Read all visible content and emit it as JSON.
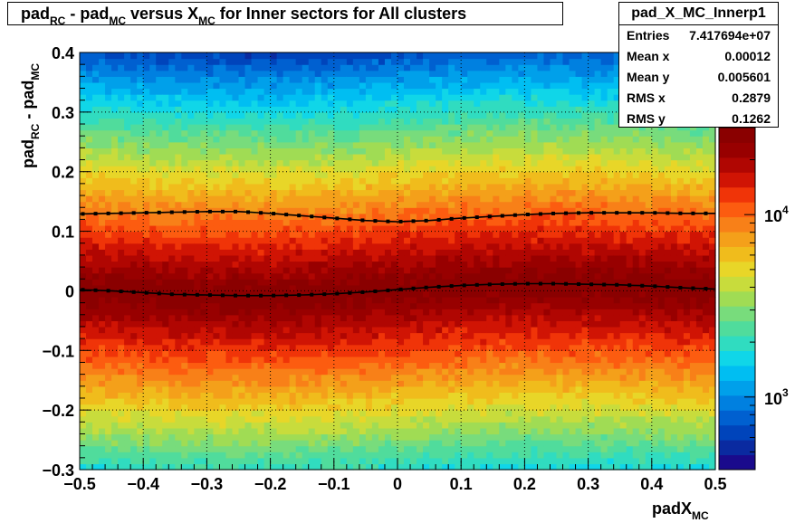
{
  "chart_data": {
    "type": "heatmap",
    "title": {
      "base": "pad",
      "sub1": "RC",
      "mid1": " - pad",
      "sub2": "MC",
      "mid2": " versus X",
      "sub3": "MC",
      "tail": " for Inner sectors for All clusters"
    },
    "xlabel": {
      "base": "padX",
      "sub": "MC"
    },
    "ylabel": {
      "base1": "pad",
      "sub1": "RC",
      "mid": " - pad",
      "sub2": "MC"
    },
    "xlim": [
      -0.5,
      0.5
    ],
    "ylim": [
      -0.3,
      0.4
    ],
    "x_ticks": [
      -0.5,
      -0.4,
      -0.3,
      -0.2,
      -0.1,
      0,
      0.1,
      0.2,
      0.3,
      0.4,
      0.5
    ],
    "x_tick_labels": [
      "−0.5",
      "−0.4",
      "−0.3",
      "−0.2",
      "−0.1",
      "0",
      "0.1",
      "0.2",
      "0.3",
      "0.4",
      "0.5"
    ],
    "y_ticks": [
      -0.3,
      -0.2,
      -0.1,
      0,
      0.1,
      0.2,
      0.3,
      0.4
    ],
    "y_tick_labels": [
      "−0.3",
      "−0.2",
      "−0.1",
      "0",
      "0.1",
      "0.2",
      "0.3",
      "0.4"
    ],
    "color_scale": "log",
    "zlim": [
      400,
      30000
    ],
    "z_tick_values": [
      1000,
      10000
    ],
    "z_tick_labels": [
      {
        "base": "10",
        "exp": "3"
      },
      {
        "base": "10",
        "exp": "4"
      }
    ],
    "grid": true,
    "palette": [
      "#1a0a8c",
      "#0a2aa0",
      "#0044bb",
      "#0060d0",
      "#0080e0",
      "#00a0ea",
      "#00bef2",
      "#10d6e8",
      "#30dcc0",
      "#50dc9c",
      "#78dc7c",
      "#a0dc54",
      "#c8dc3c",
      "#e8d628",
      "#f0bc1c",
      "#f4a01a",
      "#f88018",
      "#fc5c10",
      "#f03408",
      "#d01404",
      "#b00602",
      "#980000",
      "#8a0000"
    ],
    "mean_profile": {
      "name": "mean",
      "x": [
        -0.5,
        -0.45,
        -0.4,
        -0.35,
        -0.3,
        -0.25,
        -0.2,
        -0.15,
        -0.1,
        -0.05,
        0,
        0.05,
        0.1,
        0.15,
        0.2,
        0.25,
        0.3,
        0.35,
        0.4,
        0.45,
        0.5
      ],
      "y": [
        0.002,
        0.0,
        -0.003,
        -0.006,
        -0.007,
        -0.008,
        -0.008,
        -0.007,
        -0.005,
        -0.002,
        0.002,
        0.006,
        0.009,
        0.011,
        0.012,
        0.012,
        0.011,
        0.01,
        0.008,
        0.005,
        0.003
      ]
    },
    "rms_profile": {
      "name": "rms",
      "x": [
        -0.5,
        -0.45,
        -0.4,
        -0.35,
        -0.3,
        -0.25,
        -0.2,
        -0.15,
        -0.1,
        -0.05,
        0,
        0.05,
        0.1,
        0.15,
        0.2,
        0.25,
        0.3,
        0.35,
        0.4,
        0.45,
        0.5
      ],
      "y": [
        0.129,
        0.13,
        0.131,
        0.132,
        0.133,
        0.133,
        0.13,
        0.126,
        0.122,
        0.118,
        0.116,
        0.118,
        0.122,
        0.125,
        0.128,
        0.13,
        0.131,
        0.131,
        0.131,
        0.13,
        0.13
      ]
    },
    "stats": {
      "title": "pad_X_MC_Innerp1",
      "rows": [
        {
          "label": "Entries",
          "value": "7.417694e+07"
        },
        {
          "label": "Mean x",
          "value": "0.00012"
        },
        {
          "label": "Mean y",
          "value": "0.005601"
        },
        {
          "label": "RMS x",
          "value": "0.2879"
        },
        {
          "label": "RMS y",
          "value": "0.1262"
        }
      ]
    }
  }
}
